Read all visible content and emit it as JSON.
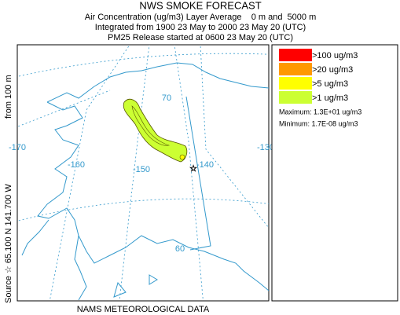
{
  "header": {
    "title": "NWS SMOKE FORECAST",
    "lines": [
      "Air Concentration (ug/m3) Layer Average    0 m and  5000 m",
      "Integrated from 1900 23 May to 2000 23 May 20 (UTC)",
      "PM25 Release started at 0600 23 May 20 (UTC)"
    ]
  },
  "source": {
    "location": "Source ☆ 65.100 N 141.700 W",
    "height": "from 100 m"
  },
  "map": {
    "labels": [
      "70",
      "-130",
      "-170",
      "-160",
      "-150",
      "-140",
      "60"
    ]
  },
  "legend": {
    "entries": [
      {
        "label": ">100 ug/m3",
        "color": "#ff0000"
      },
      {
        "label": ">20 ug/m3",
        "color": "#ff9900"
      },
      {
        "label": ">5 ug/m3",
        "color": "#ffff00"
      },
      {
        "label": ">1 ug/m3",
        "color": "#ccff33"
      }
    ],
    "maximum": "Maximum: 1.3E+01 ug/m3",
    "minimum": "Minimum: 1.7E-08 ug/m3"
  },
  "footer": "NAMS METEOROLOGICAL DATA"
}
